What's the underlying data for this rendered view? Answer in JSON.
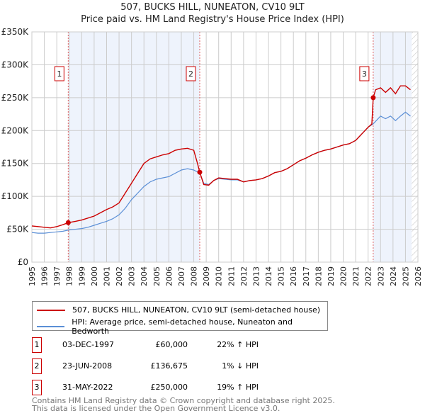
{
  "chart_data": {
    "type": "line",
    "title": "507, BUCKS HILL, NUNEATON, CV10 9LT",
    "subtitle": "Price paid vs. HM Land Registry's House Price Index (HPI)",
    "xlim": [
      1995,
      2026
    ],
    "ylim": [
      0,
      350000
    ],
    "x_ticks": [
      "1995",
      "1996",
      "1997",
      "1998",
      "1999",
      "2000",
      "2001",
      "2002",
      "2003",
      "2004",
      "2005",
      "2006",
      "2007",
      "2008",
      "2009",
      "2010",
      "2011",
      "2012",
      "2013",
      "2014",
      "2015",
      "2016",
      "2017",
      "2018",
      "2019",
      "2020",
      "2021",
      "2022",
      "2023",
      "2024",
      "2025",
      "2026"
    ],
    "y_ticks": [
      {
        "v": 0,
        "label": "£0"
      },
      {
        "v": 50000,
        "label": "£50K"
      },
      {
        "v": 100000,
        "label": "£100K"
      },
      {
        "v": 150000,
        "label": "£150K"
      },
      {
        "v": 200000,
        "label": "£200K"
      },
      {
        "v": 250000,
        "label": "£250K"
      },
      {
        "v": 300000,
        "label": "£300K"
      },
      {
        "v": 350000,
        "label": "£350K"
      }
    ],
    "grid": true,
    "shaded_ranges": [
      [
        1997.92,
        2008.48
      ],
      [
        2022.41,
        2025.5
      ]
    ],
    "hatched_from": 2025.5,
    "series": [
      {
        "name": "507, BUCKS HILL, NUNEATON, CV10 9LT (semi-detached house)",
        "color": "#cc0000",
        "x": [
          1995,
          1995.5,
          1996,
          1996.5,
          1997,
          1997.5,
          1997.92,
          1998.5,
          1999,
          1999.5,
          2000,
          2000.5,
          2001,
          2001.5,
          2002,
          2002.5,
          2003,
          2003.5,
          2004,
          2004.5,
          2005,
          2005.5,
          2006,
          2006.5,
          2007,
          2007.5,
          2008,
          2008.3,
          2008.48,
          2008.8,
          2009.2,
          2009.6,
          2010,
          2010.5,
          2011,
          2011.5,
          2012,
          2012.5,
          2013,
          2013.5,
          2014,
          2014.5,
          2015,
          2015.5,
          2016,
          2016.5,
          2017,
          2017.5,
          2018,
          2018.5,
          2019,
          2019.5,
          2020,
          2020.5,
          2021,
          2021.5,
          2022,
          2022.3,
          2022.41,
          2022.6,
          2023,
          2023.4,
          2023.8,
          2024.2,
          2024.6,
          2025,
          2025.4
        ],
        "y": [
          55000,
          54000,
          53000,
          52000,
          54000,
          57000,
          60000,
          62000,
          64000,
          67000,
          70000,
          75000,
          80000,
          84000,
          90000,
          105000,
          120000,
          135000,
          150000,
          157000,
          160000,
          163000,
          165000,
          170000,
          172000,
          173000,
          170000,
          150000,
          136675,
          118000,
          117000,
          124000,
          128000,
          127000,
          126000,
          126000,
          122000,
          124000,
          125000,
          127000,
          131000,
          136000,
          138000,
          142000,
          148000,
          154000,
          158000,
          163000,
          167000,
          170000,
          172000,
          175000,
          178000,
          180000,
          185000,
          195000,
          205000,
          210000,
          250000,
          262000,
          265000,
          258000,
          265000,
          256000,
          268000,
          268000,
          262000
        ]
      },
      {
        "name": "HPI: Average price, semi-detached house, Nuneaton and Bedworth",
        "color": "#5b8fd6",
        "x": [
          1995,
          1995.5,
          1996,
          1996.5,
          1997,
          1997.5,
          1998,
          1998.5,
          1999,
          1999.5,
          2000,
          2000.5,
          2001,
          2001.5,
          2002,
          2002.5,
          2003,
          2003.5,
          2004,
          2004.5,
          2005,
          2005.5,
          2006,
          2006.5,
          2007,
          2007.5,
          2008,
          2008.5,
          2008.8,
          2009.2,
          2009.6,
          2010,
          2010.5,
          2011,
          2011.5,
          2012,
          2012.5,
          2013,
          2013.5,
          2014,
          2014.5,
          2015,
          2015.5,
          2016,
          2016.5,
          2017,
          2017.5,
          2018,
          2018.5,
          2019,
          2019.5,
          2020,
          2020.5,
          2021,
          2021.5,
          2022,
          2022.4,
          2022.8,
          2023,
          2023.4,
          2023.8,
          2024.2,
          2024.6,
          2025,
          2025.4
        ],
        "y": [
          45000,
          44000,
          44000,
          45000,
          46000,
          47000,
          49000,
          50000,
          51000,
          53000,
          56000,
          59000,
          62000,
          66000,
          72000,
          82000,
          95000,
          105000,
          115000,
          122000,
          126000,
          128000,
          130000,
          135000,
          140000,
          142000,
          140000,
          135000,
          120000,
          118000,
          124000,
          127000,
          126000,
          125000,
          125000,
          122000,
          124000,
          125000,
          127000,
          131000,
          136000,
          138000,
          142000,
          148000,
          154000,
          158000,
          163000,
          167000,
          170000,
          172000,
          175000,
          178000,
          180000,
          185000,
          195000,
          205000,
          210000,
          218000,
          222000,
          218000,
          222000,
          215000,
          222000,
          228000,
          222000
        ]
      }
    ],
    "sales": [
      {
        "n": "1",
        "x": 1997.92,
        "y": 60000
      },
      {
        "n": "2",
        "x": 2008.48,
        "y": 136675
      },
      {
        "n": "3",
        "x": 2022.41,
        "y": 250000
      }
    ]
  },
  "transactions": [
    {
      "n": "1",
      "date": "03-DEC-1997",
      "price": "£60,000",
      "hpi": "22% ↑ HPI"
    },
    {
      "n": "2",
      "date": "23-JUN-2008",
      "price": "£136,675",
      "hpi": "1% ↓ HPI"
    },
    {
      "n": "3",
      "date": "31-MAY-2022",
      "price": "£250,000",
      "hpi": "19% ↑ HPI"
    }
  ],
  "footer": {
    "line1": "Contains HM Land Registry data © Crown copyright and database right 2025.",
    "line2": "This data is licensed under the Open Government Licence v3.0."
  }
}
